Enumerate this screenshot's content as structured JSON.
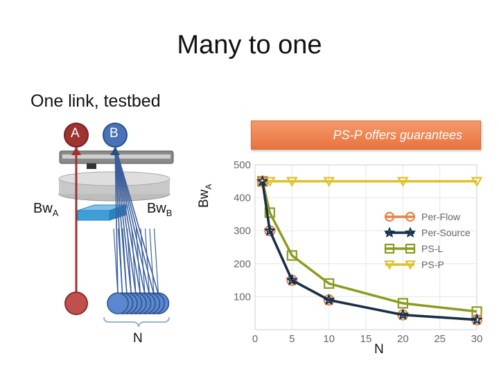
{
  "title": "Many to one",
  "subtitle": "One link, testbed",
  "banner": "PS-P offers guarantees",
  "diagram": {
    "node_a": "A",
    "node_b": "B",
    "bw_a": "Bw",
    "bw_a_sub": "A",
    "bw_b": "Bw",
    "bw_b_sub": "B",
    "n_label": "N",
    "colors": {
      "red": "#9e3330",
      "blue": "#4a72b8",
      "dark_blue": "#2a4f87",
      "switch": "#3d9ed8"
    }
  },
  "chart_data": {
    "type": "line",
    "ylabel": "Bw",
    "ylabel_sub": "A",
    "xlabel": "N",
    "xlim": [
      0,
      30
    ],
    "ylim": [
      0,
      500
    ],
    "xticks": [
      0,
      5,
      10,
      15,
      20,
      25,
      30
    ],
    "yticks": [
      100,
      200,
      300,
      400,
      500
    ],
    "grid": true,
    "legend_position": "right",
    "series": [
      {
        "name": "Per-Flow",
        "color": "#e8824a",
        "marker": "circle",
        "x": [
          1,
          2,
          5,
          10,
          20,
          30
        ],
        "y": [
          450,
          300,
          150,
          90,
          45,
          30
        ]
      },
      {
        "name": "Per-Source",
        "color": "#15304a",
        "marker": "star",
        "x": [
          1,
          2,
          5,
          10,
          20,
          30
        ],
        "y": [
          450,
          300,
          150,
          90,
          45,
          30
        ]
      },
      {
        "name": "PS-L",
        "color": "#8c9a1e",
        "marker": "square",
        "x": [
          1,
          2,
          5,
          10,
          20,
          30
        ],
        "y": [
          450,
          355,
          225,
          140,
          80,
          55
        ]
      },
      {
        "name": "PS-P",
        "color": "#e0c12a",
        "marker": "triangle",
        "x": [
          1,
          2,
          5,
          10,
          20,
          30
        ],
        "y": [
          450,
          450,
          450,
          450,
          450,
          450
        ]
      }
    ]
  }
}
